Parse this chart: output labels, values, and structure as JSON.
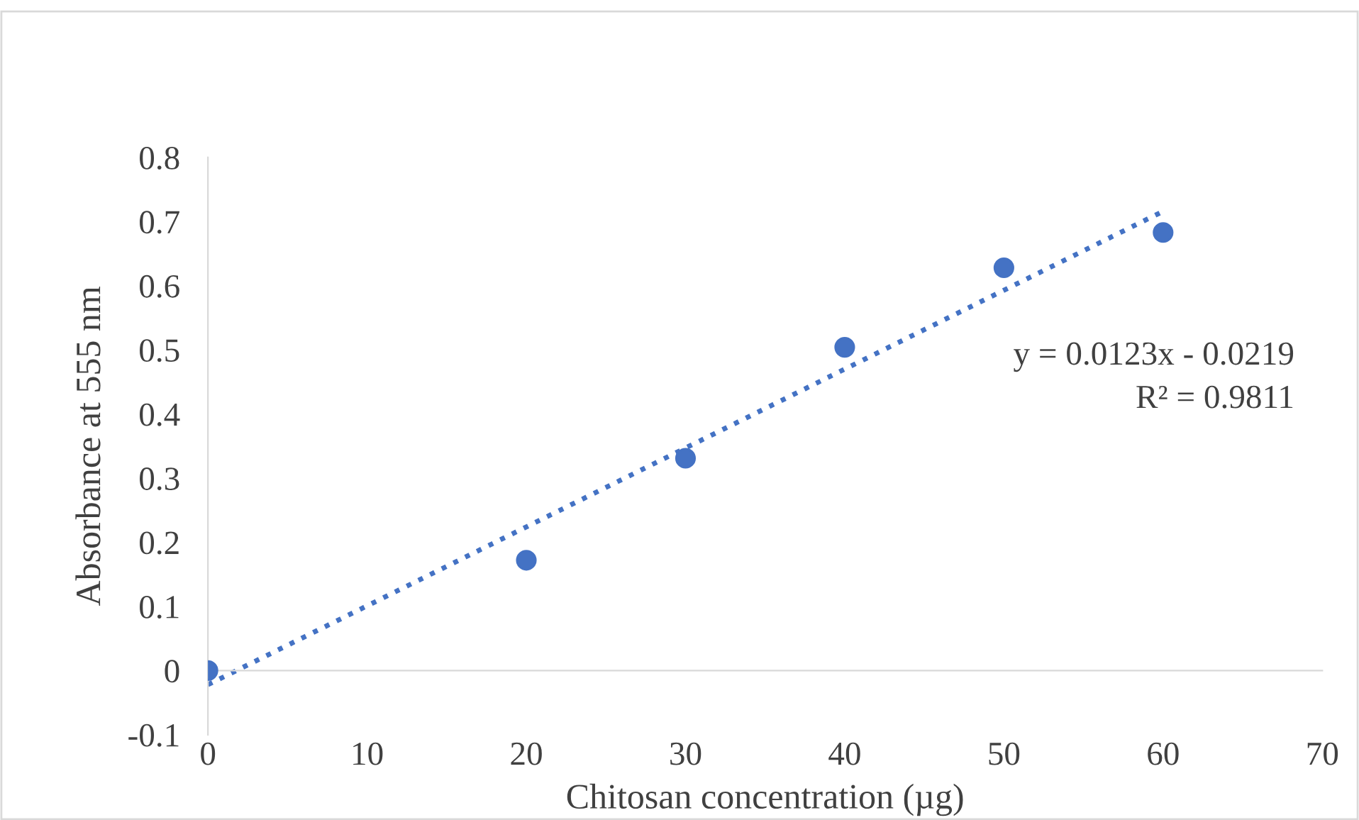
{
  "chart_data": {
    "type": "scatter",
    "xlabel": "Chitosan concentration (µg)",
    "ylabel": "Absorbance at 555 nm",
    "x": [
      0,
      20,
      30,
      40,
      50,
      60
    ],
    "series": [
      {
        "color": "#4472c4",
        "marker": "circle",
        "values": [
          0,
          0.172,
          0.331,
          0.504,
          0.628,
          0.683
        ]
      },
      {
        "type": "line",
        "color": "#4472c4",
        "line_style": "dotted",
        "x": [
          0,
          60
        ],
        "values": [
          -0.022,
          0.716
        ]
      }
    ],
    "annotations": [
      "y = 0.0123x - 0.0219",
      "R² = 0.9811"
    ],
    "xlim": [
      0,
      70
    ],
    "xticks": [
      0,
      10,
      20,
      30,
      40,
      50,
      60,
      70
    ],
    "ylim": [
      -0.1,
      0.8
    ],
    "yticks": [
      -0.1,
      0,
      0.1,
      0.2,
      0.3,
      0.4,
      0.5,
      0.6,
      0.7,
      0.8
    ],
    "grid": false,
    "legend": false
  }
}
